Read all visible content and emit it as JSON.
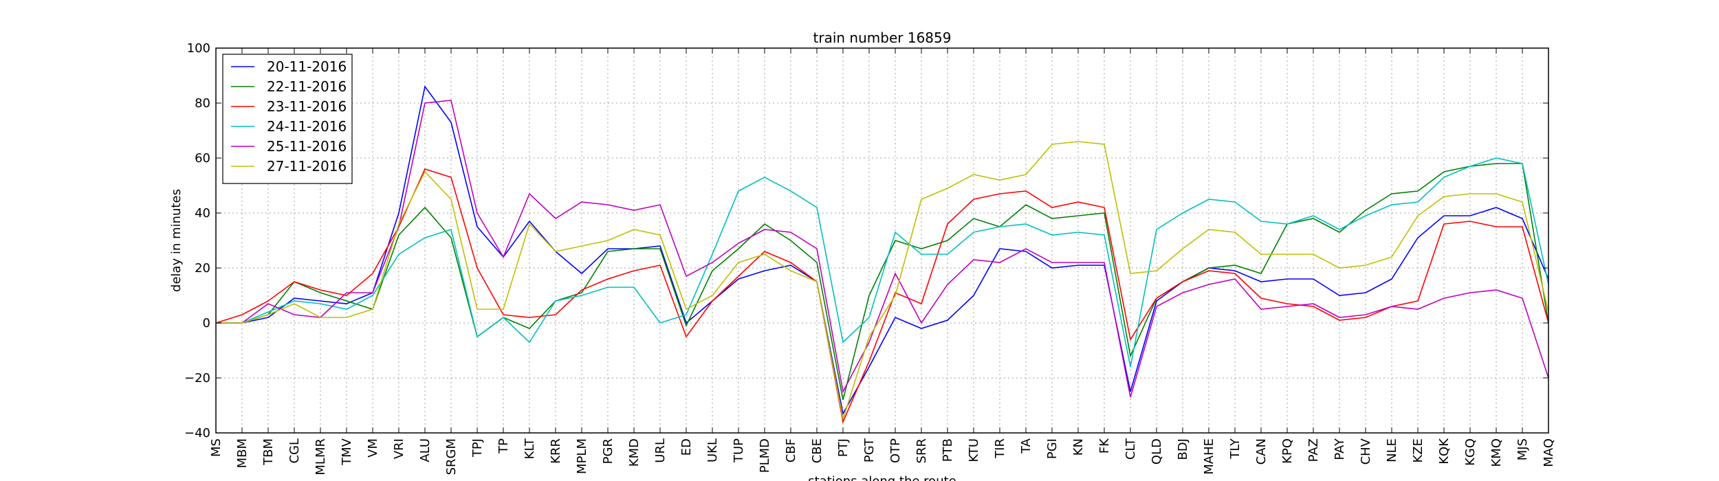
{
  "chart_data": {
    "type": "line",
    "title": "train number 16859",
    "xlabel": "stations along the route",
    "ylabel": "delay in minutes",
    "ylim": [
      -40,
      100
    ],
    "yticks": [
      -40,
      -20,
      0,
      20,
      40,
      60,
      80,
      100
    ],
    "grid": true,
    "legend_position": "top-left",
    "categories": [
      "MS",
      "MBM",
      "TBM",
      "CGL",
      "MLMR",
      "TMV",
      "VM",
      "VRI",
      "ALU",
      "SRGM",
      "TPJ",
      "TP",
      "KLT",
      "KRR",
      "MPLM",
      "PGR",
      "KMD",
      "URL",
      "ED",
      "UKL",
      "TUP",
      "PLMD",
      "CBF",
      "CBE",
      "PTJ",
      "PGT",
      "OTP",
      "SRR",
      "PTB",
      "KTU",
      "TIR",
      "TA",
      "PGI",
      "KN",
      "FK",
      "CLT",
      "QLD",
      "BDJ",
      "MAHE",
      "TLY",
      "CAN",
      "KPQ",
      "PAZ",
      "PAY",
      "CHV",
      "NLE",
      "KZE",
      "KQK",
      "KGQ",
      "KMQ",
      "MJS",
      "MAQ"
    ],
    "series": [
      {
        "name": "20-11-2016",
        "color": "#0000ff",
        "values": [
          0,
          0,
          2,
          9,
          8,
          7,
          11,
          40,
          86,
          73,
          35,
          24,
          37,
          26,
          18,
          27,
          27,
          28,
          0,
          8,
          16,
          19,
          21,
          15,
          -33,
          -16,
          2,
          -2,
          1,
          10,
          27,
          26,
          20,
          21,
          21,
          -25,
          8,
          15,
          20,
          19,
          15,
          16,
          16,
          10,
          11,
          16,
          31,
          39,
          39,
          42,
          38,
          16
        ]
      },
      {
        "name": "22-11-2016",
        "color": "#008000",
        "values": [
          0,
          0,
          3,
          15,
          11,
          8,
          5,
          32,
          42,
          31,
          -5,
          2,
          -2,
          8,
          11,
          26,
          27,
          27,
          -1,
          19,
          27,
          36,
          30,
          22,
          -28,
          10,
          30,
          27,
          30,
          38,
          35,
          43,
          38,
          39,
          40,
          -12,
          9,
          15,
          20,
          21,
          18,
          36,
          38,
          33,
          41,
          47,
          48,
          55,
          57,
          58,
          58,
          0
        ]
      },
      {
        "name": "23-11-2016",
        "color": "#ff0000",
        "values": [
          0,
          3,
          8,
          15,
          12,
          10,
          18,
          35,
          56,
          53,
          20,
          3,
          2,
          3,
          12,
          16,
          19,
          21,
          -5,
          8,
          17,
          26,
          22,
          15,
          -36,
          -14,
          11,
          7,
          36,
          45,
          47,
          48,
          42,
          44,
          42,
          -6,
          9,
          15,
          19,
          18,
          9,
          7,
          6,
          1,
          2,
          6,
          8,
          36,
          37,
          35,
          35,
          0
        ]
      },
      {
        "name": "24-11-2016",
        "color": "#00bfbf",
        "values": [
          0,
          0,
          4,
          8,
          7,
          5,
          10,
          25,
          31,
          34,
          -5,
          2,
          -7,
          8,
          10,
          13,
          13,
          0,
          3,
          25,
          48,
          53,
          48,
          42,
          -7,
          2,
          33,
          25,
          25,
          33,
          35,
          36,
          32,
          33,
          32,
          -16,
          34,
          40,
          45,
          44,
          37,
          36,
          39,
          34,
          39,
          43,
          44,
          53,
          57,
          60,
          58,
          14
        ]
      },
      {
        "name": "25-11-2016",
        "color": "#bf00bf",
        "values": [
          0,
          0,
          7,
          3,
          2,
          11,
          11,
          35,
          80,
          81,
          40,
          24,
          47,
          38,
          44,
          43,
          41,
          43,
          17,
          22,
          29,
          34,
          33,
          27,
          -25,
          -7,
          18,
          0,
          14,
          23,
          22,
          27,
          22,
          22,
          22,
          -27,
          6,
          11,
          14,
          16,
          5,
          6,
          7,
          2,
          3,
          6,
          5,
          9,
          11,
          12,
          9,
          -20
        ]
      },
      {
        "name": "27-11-2016",
        "color": "#bfbf00",
        "values": [
          0,
          0,
          3,
          7,
          2,
          2,
          5,
          36,
          55,
          45,
          5,
          5,
          36,
          26,
          28,
          30,
          34,
          32,
          5,
          10,
          22,
          25,
          19,
          15,
          -35,
          -5,
          10,
          45,
          49,
          54,
          52,
          54,
          65,
          66,
          65,
          18,
          19,
          27,
          34,
          33,
          25,
          25,
          25,
          20,
          21,
          24,
          39,
          46,
          47,
          47,
          44,
          4
        ]
      }
    ]
  }
}
